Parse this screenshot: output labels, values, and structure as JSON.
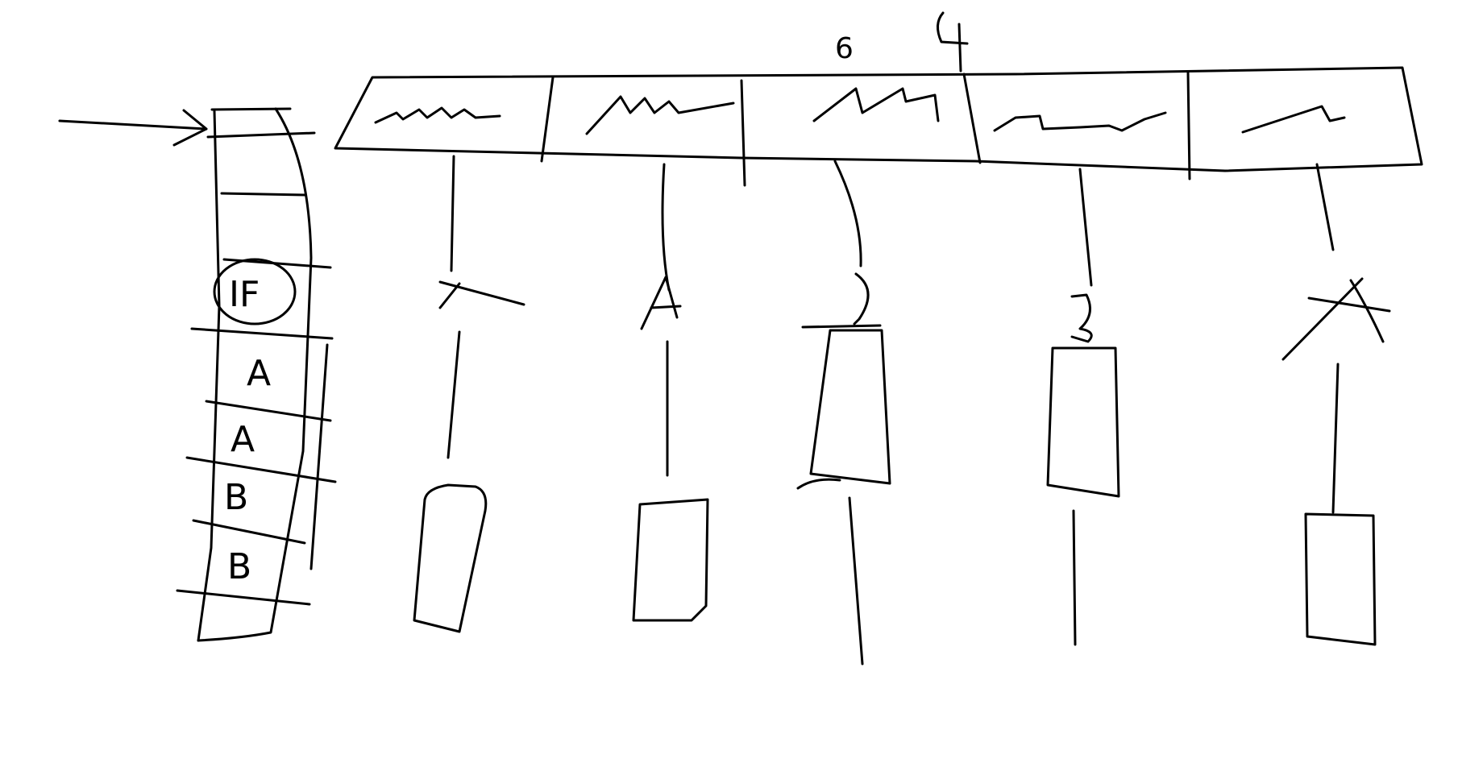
{
  "top_marks": {
    "left": "6",
    "right": "4"
  },
  "queue": {
    "cells": [
      "IF",
      "A",
      "A",
      "B",
      "B"
    ]
  },
  "stages": [
    {
      "label": "A"
    },
    {
      "label": "A"
    },
    {
      "label": "B"
    },
    {
      "label": "B"
    },
    {
      "label": "A"
    }
  ],
  "colors": {
    "ink": "#000000",
    "background": "#ffffff"
  }
}
